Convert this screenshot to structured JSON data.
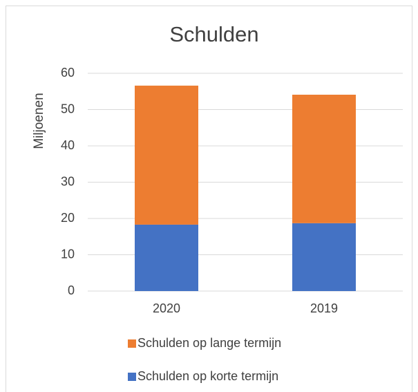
{
  "chart_data": {
    "type": "stacked_bar",
    "title": "Schulden",
    "y_label": "Miljoenen",
    "categories": [
      "2020",
      "2019"
    ],
    "series": [
      {
        "name": "Schulden op korte termijn",
        "color": "#4472c4",
        "values": [
          18.3,
          18.7
        ]
      },
      {
        "name": "Schulden op lange termijn",
        "color": "#ed7d31",
        "values": [
          38.3,
          35.4
        ]
      }
    ],
    "ylim": [
      0,
      60
    ],
    "yticks": [
      0,
      10,
      20,
      30,
      40,
      50,
      60
    ],
    "grid": true,
    "legend": "bottom"
  }
}
